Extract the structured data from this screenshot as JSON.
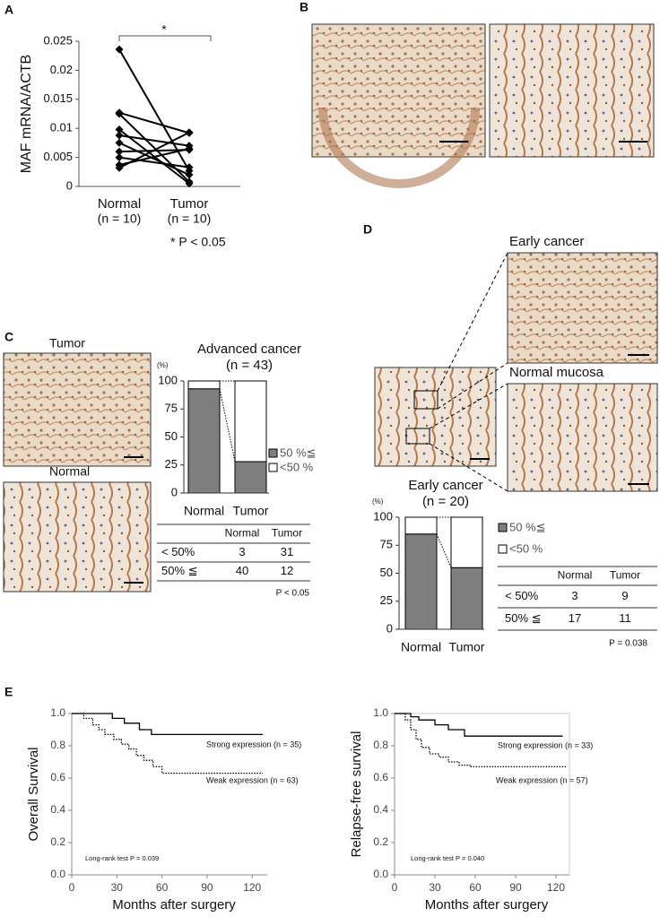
{
  "panels": [
    "A",
    "B",
    "C",
    "D",
    "E"
  ],
  "image_labels": [
    "Tumor",
    "Normal",
    "Early cancer",
    "Normal mucosa"
  ],
  "tables": [
    {
      "columns": [
        "Normal",
        "Tumor"
      ],
      "rows": [
        {
          "label": "< 50%",
          "values": [
            3,
            31
          ]
        },
        {
          "label": "50% ≦",
          "values": [
            40,
            12
          ]
        }
      ],
      "note": "P < 0.05"
    },
    {
      "columns": [
        "Normal",
        "Tumor"
      ],
      "rows": [
        {
          "label": "< 50%",
          "values": [
            3,
            9
          ]
        },
        {
          "label": "50% ≦",
          "values": [
            17,
            11
          ]
        }
      ],
      "note": "P = 0.038"
    }
  ],
  "chart_data": [
    {
      "type": "slope",
      "y_label": "MAF mRNA/ACTB",
      "categories": [
        "Normal",
        "Tumor"
      ],
      "category_counts": [
        "(n = 10)",
        "(n = 10)"
      ],
      "significance": "*",
      "note": "* P < 0.05",
      "color": "#000000",
      "ylim": [
        0,
        0.025
      ],
      "yticks": [
        0,
        0.005,
        0.01,
        0.015,
        0.02,
        0.025
      ],
      "series": [
        {
          "values": [
            0.0236,
            0.0027
          ]
        },
        {
          "values": [
            0.0127,
            0.0092
          ]
        },
        {
          "values": [
            0.0125,
            0.0008
          ]
        },
        {
          "values": [
            0.0098,
            0.0005
          ]
        },
        {
          "values": [
            0.0088,
            0.007
          ]
        },
        {
          "values": [
            0.0075,
            0.002
          ]
        },
        {
          "values": [
            0.006,
            0.0063
          ]
        },
        {
          "values": [
            0.005,
            0.0033
          ]
        },
        {
          "values": [
            0.0037,
            0.0065
          ]
        },
        {
          "values": [
            0.0032,
            0.0093
          ]
        }
      ]
    },
    {
      "type": "bar",
      "stacked": true,
      "title": "Advanced cancer",
      "subtitle": "(n = 43)",
      "y_unit": "(%)",
      "categories": [
        "Normal",
        "Tumor"
      ],
      "series": [
        {
          "name": "50 %≦",
          "color": "#7f7f7f",
          "values": [
            93,
            28
          ]
        },
        {
          "name": "<50 %",
          "color": "#ffffff",
          "values": [
            7,
            72
          ]
        }
      ],
      "ylim": [
        0,
        100
      ],
      "yticks": [
        0,
        25,
        50,
        75,
        100
      ]
    },
    {
      "type": "bar",
      "stacked": true,
      "title": "Early cancer",
      "subtitle": "(n = 20)",
      "y_unit": "(%)",
      "categories": [
        "Normal",
        "Tumor"
      ],
      "series": [
        {
          "name": "50 %≦",
          "color": "#7f7f7f",
          "values": [
            85,
            55
          ]
        },
        {
          "name": "<50 %",
          "color": "#ffffff",
          "values": [
            15,
            45
          ]
        }
      ],
      "ylim": [
        0,
        100
      ],
      "yticks": [
        0,
        25,
        50,
        75,
        100
      ]
    },
    {
      "type": "line",
      "y_label": "Overall Survival",
      "x_label": "Months after surgery",
      "annotation": "Long-rank test P = 0.039",
      "xlim": [
        0,
        130
      ],
      "ylim": [
        0,
        1
      ],
      "xticks": [
        0,
        30,
        60,
        90,
        120
      ],
      "yticks": [
        {
          "value": 0,
          "label": "0.0"
        },
        0.2,
        0.4,
        0.6,
        0.8,
        {
          "value": 1,
          "label": "1.0"
        }
      ],
      "series": [
        {
          "name": "Strong expression (n = 35)",
          "style": "solid",
          "x": [
            0,
            27,
            27,
            35,
            35,
            45,
            45,
            53,
            53,
            127
          ],
          "values": [
            1,
            1,
            0.97,
            0.97,
            0.94,
            0.94,
            0.9,
            0.9,
            0.87,
            0.87
          ]
        },
        {
          "name": "Weak expression (n = 63)",
          "style": "dotted",
          "x": [
            0,
            8,
            8,
            14,
            14,
            18,
            18,
            22,
            22,
            28,
            28,
            33,
            33,
            38,
            38,
            43,
            43,
            48,
            48,
            54,
            54,
            60,
            60,
            127
          ],
          "values": [
            1,
            1,
            0.97,
            0.97,
            0.93,
            0.93,
            0.9,
            0.9,
            0.87,
            0.87,
            0.84,
            0.84,
            0.81,
            0.81,
            0.78,
            0.78,
            0.74,
            0.74,
            0.71,
            0.71,
            0.67,
            0.67,
            0.63,
            0.63
          ]
        }
      ]
    },
    {
      "type": "line",
      "y_label": "Relapse-free survival",
      "x_label": "Months after surgery",
      "annotation": "Long-rank test P = 0.040",
      "xlim": [
        0,
        130
      ],
      "ylim": [
        0,
        1
      ],
      "xticks": [
        0,
        30,
        60,
        90,
        120
      ],
      "yticks": [
        {
          "value": 0,
          "label": "0.0"
        },
        0.2,
        0.4,
        0.6,
        0.8,
        {
          "value": 1,
          "label": "1.0"
        }
      ],
      "series": [
        {
          "name": "Strong expression (n = 33)",
          "style": "solid",
          "x": [
            0,
            12,
            12,
            18,
            18,
            30,
            30,
            40,
            40,
            52,
            52,
            125
          ],
          "values": [
            1,
            1,
            0.98,
            0.98,
            0.96,
            0.96,
            0.93,
            0.93,
            0.9,
            0.9,
            0.86,
            0.86
          ]
        },
        {
          "name": "Weak expression (n = 57)",
          "style": "dotted",
          "x": [
            0,
            8,
            8,
            12,
            12,
            16,
            16,
            20,
            20,
            26,
            26,
            33,
            33,
            40,
            40,
            48,
            48,
            56,
            56,
            128
          ],
          "values": [
            1,
            1,
            0.96,
            0.96,
            0.9,
            0.9,
            0.84,
            0.84,
            0.79,
            0.79,
            0.75,
            0.75,
            0.73,
            0.73,
            0.7,
            0.7,
            0.68,
            0.68,
            0.67,
            0.67
          ]
        }
      ]
    }
  ]
}
